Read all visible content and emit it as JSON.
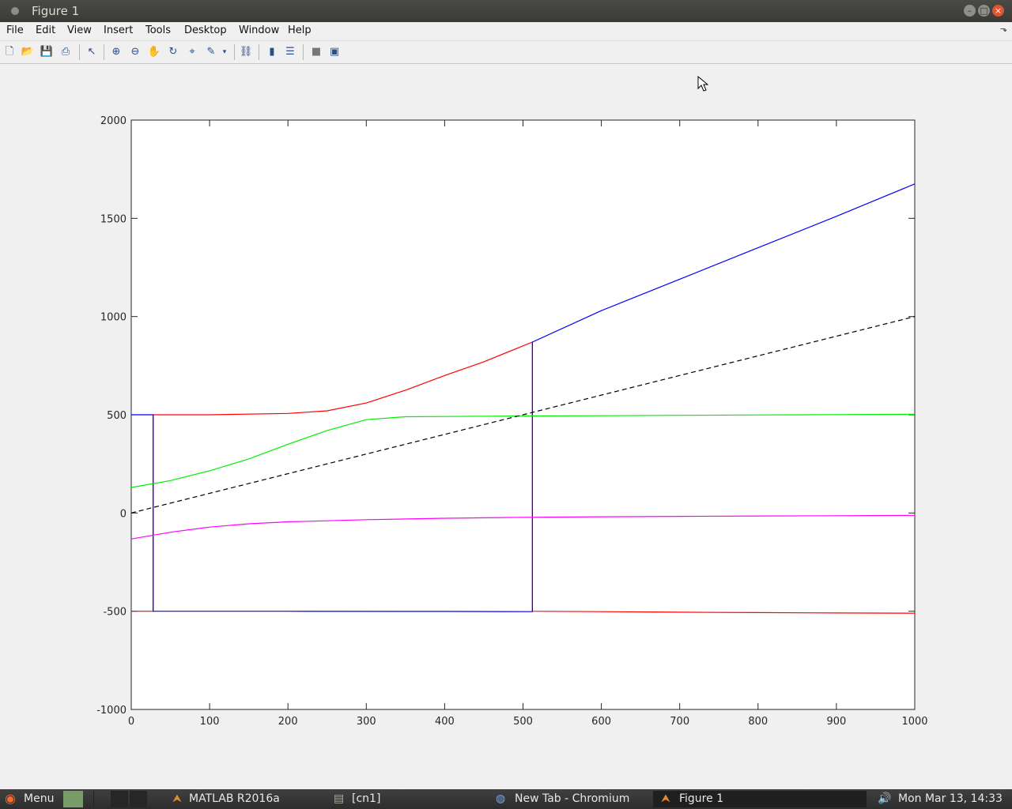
{
  "window": {
    "title": "Figure 1"
  },
  "menu": [
    "File",
    "Edit",
    "View",
    "Insert",
    "Tools",
    "Desktop",
    "Window",
    "Help"
  ],
  "toolbar": {
    "icons": [
      "new-figure-icon",
      "open-file-icon",
      "save-icon",
      "print-icon",
      "edit-plot-icon",
      "zoom-in-icon",
      "zoom-out-icon",
      "pan-icon",
      "rotate-3d-icon",
      "data-cursor-icon",
      "brush-icon",
      "brush-dropdown-icon",
      "link-plot-icon",
      "insert-colorbar-icon",
      "insert-legend-icon",
      "hide-plot-tools-icon",
      "show-plot-tools-icon"
    ]
  },
  "chart_data": {
    "type": "line",
    "xlim": [
      0,
      1000
    ],
    "ylim": [
      -1000,
      2000
    ],
    "x_ticks": [
      0,
      100,
      200,
      300,
      400,
      500,
      600,
      700,
      800,
      900,
      1000
    ],
    "y_ticks": [
      -1000,
      -500,
      0,
      500,
      1000,
      1500,
      2000
    ],
    "grid": false,
    "legend": "none",
    "series": [
      {
        "color": "#ff0000",
        "dash": false,
        "points": [
          [
            0,
            -500
          ],
          [
            28,
            -500
          ],
          [
            28,
            500
          ],
          [
            100,
            500
          ],
          [
            200,
            507
          ],
          [
            250,
            520
          ],
          [
            300,
            560
          ],
          [
            350,
            625
          ],
          [
            400,
            700
          ],
          [
            450,
            770
          ],
          [
            512,
            870
          ],
          [
            512,
            -500
          ],
          [
            600,
            -502
          ],
          [
            700,
            -505
          ],
          [
            800,
            -507
          ],
          [
            900,
            -509
          ],
          [
            1000,
            -510
          ]
        ]
      },
      {
        "color": "#0000ff",
        "dash": false,
        "points": [
          [
            0,
            500
          ],
          [
            28,
            500
          ],
          [
            28,
            -500
          ],
          [
            200,
            -500
          ],
          [
            400,
            -501
          ],
          [
            512,
            -502
          ],
          [
            512,
            870
          ],
          [
            600,
            1030
          ],
          [
            700,
            1190
          ],
          [
            800,
            1350
          ],
          [
            900,
            1510
          ],
          [
            1000,
            1675
          ]
        ]
      },
      {
        "color": "#00ee00",
        "dash": false,
        "points": [
          [
            0,
            130
          ],
          [
            50,
            165
          ],
          [
            100,
            215
          ],
          [
            150,
            275
          ],
          [
            200,
            350
          ],
          [
            250,
            420
          ],
          [
            300,
            475
          ],
          [
            350,
            490
          ],
          [
            400,
            491
          ],
          [
            500,
            494
          ],
          [
            600,
            495
          ],
          [
            700,
            497
          ],
          [
            800,
            499
          ],
          [
            900,
            501
          ],
          [
            1000,
            503
          ]
        ]
      },
      {
        "color": "#ff00ff",
        "dash": false,
        "points": [
          [
            0,
            -132
          ],
          [
            50,
            -98
          ],
          [
            100,
            -72
          ],
          [
            150,
            -55
          ],
          [
            200,
            -45
          ],
          [
            300,
            -34
          ],
          [
            400,
            -27
          ],
          [
            500,
            -22
          ],
          [
            600,
            -19
          ],
          [
            700,
            -17
          ],
          [
            800,
            -15
          ],
          [
            900,
            -14
          ],
          [
            1000,
            -12
          ]
        ]
      },
      {
        "color": "#000000",
        "dash": true,
        "points": [
          [
            0,
            0
          ],
          [
            1000,
            1000
          ]
        ]
      }
    ]
  },
  "taskbar": {
    "menu_label": "Menu",
    "items": [
      "MATLAB R2016a",
      "[cn1]",
      "New Tab - Chromium",
      "Figure 1"
    ],
    "clock": "Mon Mar 13, 14:33"
  }
}
